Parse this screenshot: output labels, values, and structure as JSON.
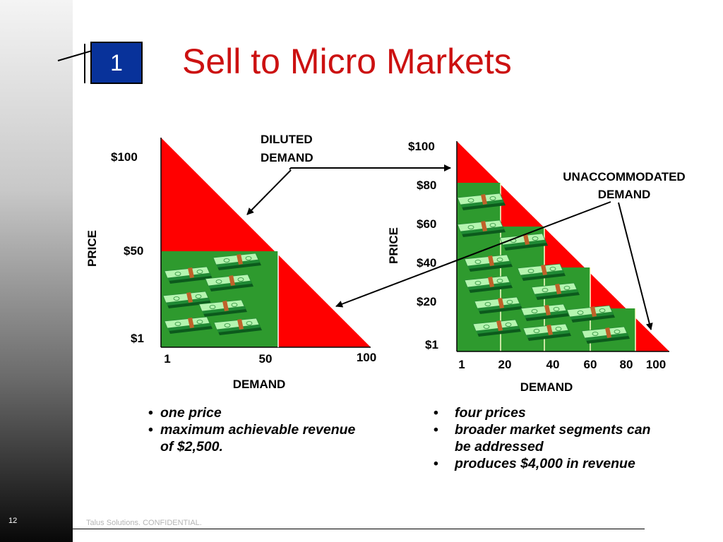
{
  "slide": {
    "number": "1",
    "title": "Sell to Micro Markets",
    "page_number": "12",
    "footer": "Talus Solutions. CONFIDENTIAL."
  },
  "colors": {
    "red": "#ff0000",
    "green": "#2e9a2e",
    "title_red": "#cc1111",
    "number_box_blue": "#08329a"
  },
  "left_chart": {
    "type": "area",
    "ylabel": "PRICE",
    "xlabel": "DEMAND",
    "y_ticks": [
      "$100",
      "$50",
      "$1"
    ],
    "x_ticks": [
      "1",
      "50",
      "100"
    ]
  },
  "right_chart": {
    "type": "area",
    "ylabel": "PRICE",
    "xlabel": "DEMAND",
    "y_ticks": [
      "$100",
      "$80",
      "$60",
      "$40",
      "$20",
      "$1"
    ],
    "x_ticks": [
      "1",
      "20",
      "40",
      "60",
      "80",
      "100"
    ]
  },
  "annotations": {
    "diluted_line1": "DILUTED",
    "diluted_line2": "DEMAND",
    "unaccommodated_line1": "UNACCOMMODATED",
    "unaccommodated_line2": "DEMAND"
  },
  "left_bullets": {
    "b1": "one price",
    "b2_line1": "maximum achievable revenue",
    "b2_line2": "of $2,500."
  },
  "right_bullets": {
    "b1": "four prices",
    "b2_line1": "broader market segments can",
    "b2_line2": "be addressed",
    "b3": "produces $4,000 in revenue"
  },
  "chart_data": [
    {
      "type": "area",
      "title": "",
      "xlabel": "DEMAND",
      "ylabel": "PRICE",
      "x": [
        1,
        50,
        100
      ],
      "y_ticks": [
        "$100",
        "$50",
        "$1"
      ],
      "demand_curve": {
        "x": [
          1,
          100
        ],
        "y": [
          100,
          1
        ]
      },
      "captured_revenue": [
        {
          "price": 50,
          "demand": 50
        }
      ],
      "revenue_total": 2500
    },
    {
      "type": "area",
      "title": "",
      "xlabel": "DEMAND",
      "ylabel": "PRICE",
      "x": [
        1,
        20,
        40,
        60,
        80,
        100
      ],
      "y_ticks": [
        "$100",
        "$80",
        "$60",
        "$40",
        "$20",
        "$1"
      ],
      "demand_curve": {
        "x": [
          1,
          100
        ],
        "y": [
          100,
          1
        ]
      },
      "captured_revenue": [
        {
          "price": 80,
          "demand": 20
        },
        {
          "price": 60,
          "demand": 40
        },
        {
          "price": 40,
          "demand": 60
        },
        {
          "price": 20,
          "demand": 80
        }
      ],
      "revenue_total": 4000
    }
  ]
}
